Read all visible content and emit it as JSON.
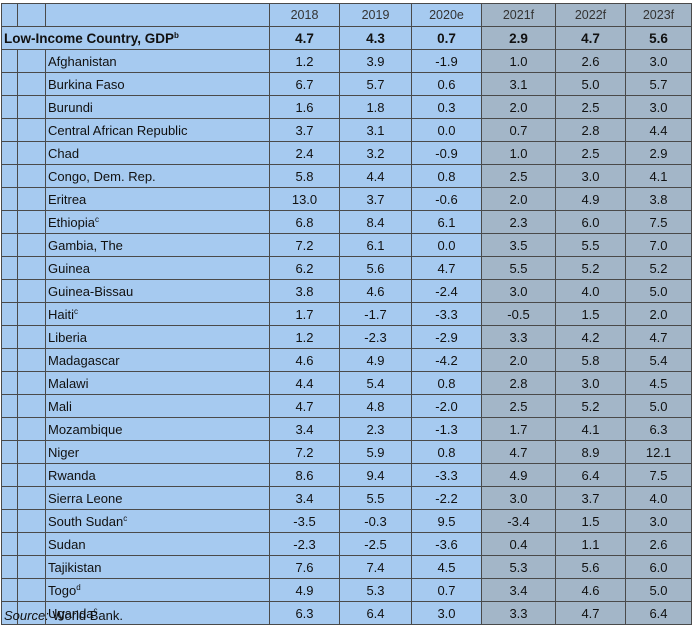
{
  "table": {
    "columns": [
      "2018",
      "2019",
      "2020e",
      "2021f",
      "2022f",
      "2023f"
    ],
    "total": {
      "name": "Low-Income Country, GDP",
      "note": "b",
      "values": [
        "4.7",
        "4.3",
        "0.7",
        "2.9",
        "4.7",
        "5.6"
      ]
    },
    "rows": [
      {
        "name": "Afghanistan",
        "values": [
          "1.2",
          "3.9",
          "-1.9",
          "1.0",
          "2.6",
          "3.0"
        ]
      },
      {
        "name": "Burkina Faso",
        "values": [
          "6.7",
          "5.7",
          "0.6",
          "3.1",
          "5.0",
          "5.7"
        ]
      },
      {
        "name": "Burundi",
        "values": [
          "1.6",
          "1.8",
          "0.3",
          "2.0",
          "2.5",
          "3.0"
        ]
      },
      {
        "name": "Central African Republic",
        "values": [
          "3.7",
          "3.1",
          "0.0",
          "0.7",
          "2.8",
          "4.4"
        ]
      },
      {
        "name": "Chad",
        "values": [
          "2.4",
          "3.2",
          "-0.9",
          "1.0",
          "2.5",
          "2.9"
        ]
      },
      {
        "name": "Congo, Dem. Rep.",
        "values": [
          "5.8",
          "4.4",
          "0.8",
          "2.5",
          "3.0",
          "4.1"
        ]
      },
      {
        "name": "Eritrea",
        "values": [
          "13.0",
          "3.7",
          "-0.6",
          "2.0",
          "4.9",
          "3.8"
        ]
      },
      {
        "name": "Ethiopia",
        "note": "c",
        "values": [
          "6.8",
          "8.4",
          "6.1",
          "2.3",
          "6.0",
          "7.5"
        ]
      },
      {
        "name": "Gambia, The",
        "values": [
          "7.2",
          "6.1",
          "0.0",
          "3.5",
          "5.5",
          "7.0"
        ]
      },
      {
        "name": "Guinea",
        "values": [
          "6.2",
          "5.6",
          "4.7",
          "5.5",
          "5.2",
          "5.2"
        ]
      },
      {
        "name": "Guinea-Bissau",
        "values": [
          "3.8",
          "4.6",
          "-2.4",
          "3.0",
          "4.0",
          "5.0"
        ]
      },
      {
        "name": "Haiti",
        "note": "c",
        "values": [
          "1.7",
          "-1.7",
          "-3.3",
          "-0.5",
          "1.5",
          "2.0"
        ]
      },
      {
        "name": "Liberia",
        "values": [
          "1.2",
          "-2.3",
          "-2.9",
          "3.3",
          "4.2",
          "4.7"
        ]
      },
      {
        "name": "Madagascar",
        "values": [
          "4.6",
          "4.9",
          "-4.2",
          "2.0",
          "5.8",
          "5.4"
        ]
      },
      {
        "name": "Malawi",
        "values": [
          "4.4",
          "5.4",
          "0.8",
          "2.8",
          "3.0",
          "4.5"
        ]
      },
      {
        "name": "Mali",
        "values": [
          "4.7",
          "4.8",
          "-2.0",
          "2.5",
          "5.2",
          "5.0"
        ]
      },
      {
        "name": "Mozambique",
        "values": [
          "3.4",
          "2.3",
          "-1.3",
          "1.7",
          "4.1",
          "6.3"
        ]
      },
      {
        "name": "Niger",
        "values": [
          "7.2",
          "5.9",
          "0.8",
          "4.7",
          "8.9",
          "12.1"
        ]
      },
      {
        "name": "Rwanda",
        "values": [
          "8.6",
          "9.4",
          "-3.3",
          "4.9",
          "6.4",
          "7.5"
        ]
      },
      {
        "name": "Sierra Leone",
        "values": [
          "3.4",
          "5.5",
          "-2.2",
          "3.0",
          "3.7",
          "4.0"
        ]
      },
      {
        "name": "South Sudan",
        "note": "c",
        "values": [
          "-3.5",
          "-0.3",
          "9.5",
          "-3.4",
          "1.5",
          "3.0"
        ]
      },
      {
        "name": "Sudan",
        "values": [
          "-2.3",
          "-2.5",
          "-3.6",
          "0.4",
          "1.1",
          "2.6"
        ]
      },
      {
        "name": "Tajikistan",
        "values": [
          "7.6",
          "7.4",
          "4.5",
          "5.3",
          "5.6",
          "6.0"
        ]
      },
      {
        "name": "Togo",
        "note": "d",
        "values": [
          "4.9",
          "5.3",
          "0.7",
          "3.4",
          "4.6",
          "5.0"
        ]
      },
      {
        "name": "Uganda",
        "note": "c",
        "values": [
          "6.3",
          "6.4",
          "3.0",
          "3.3",
          "4.7",
          "6.4"
        ]
      }
    ]
  },
  "source": {
    "label": "Source:",
    "text": "World Bank."
  }
}
